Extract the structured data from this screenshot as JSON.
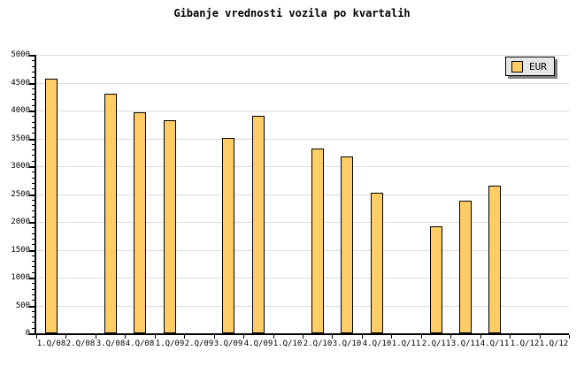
{
  "title": "Gibanje vrednosti vozila po kvartalih",
  "legend": {
    "label": "EUR"
  },
  "colors": {
    "bar_fill": "#FFCC66",
    "bar_border": "#000000",
    "grid": "#DCDCDC",
    "axis": "#000000",
    "legend_bg": "#E6E6E6",
    "legend_shadow": "#808080"
  },
  "chart_data": {
    "type": "bar",
    "title": "Gibanje vrednosti vozila po kvartalih",
    "categories": [
      "1.Q/08",
      "2.Q/08",
      "3.Q/08",
      "4.Q/08",
      "1.Q/09",
      "2.Q/09",
      "3.Q/09",
      "4.Q/09",
      "1.Q/10",
      "2.Q/10",
      "3.Q/10",
      "4.Q/10",
      "1.Q/11",
      "2.Q/11",
      "3.Q/11",
      "4.Q/11",
      "1.Q/12",
      "1.Q/12"
    ],
    "series": [
      {
        "name": "EUR",
        "values": [
          4570,
          null,
          4300,
          3970,
          3830,
          null,
          3510,
          3910,
          null,
          3310,
          3170,
          2530,
          null,
          1920,
          2380,
          2650,
          null,
          null
        ]
      }
    ],
    "xlabel": "",
    "ylabel": "",
    "ylim": [
      0,
      5000
    ],
    "ytick_step": 500,
    "yminor_step": 100,
    "grid": true,
    "legend_entries": [
      "EUR"
    ],
    "legend_position": "top-right",
    "bar_color": "#FFCC66"
  }
}
